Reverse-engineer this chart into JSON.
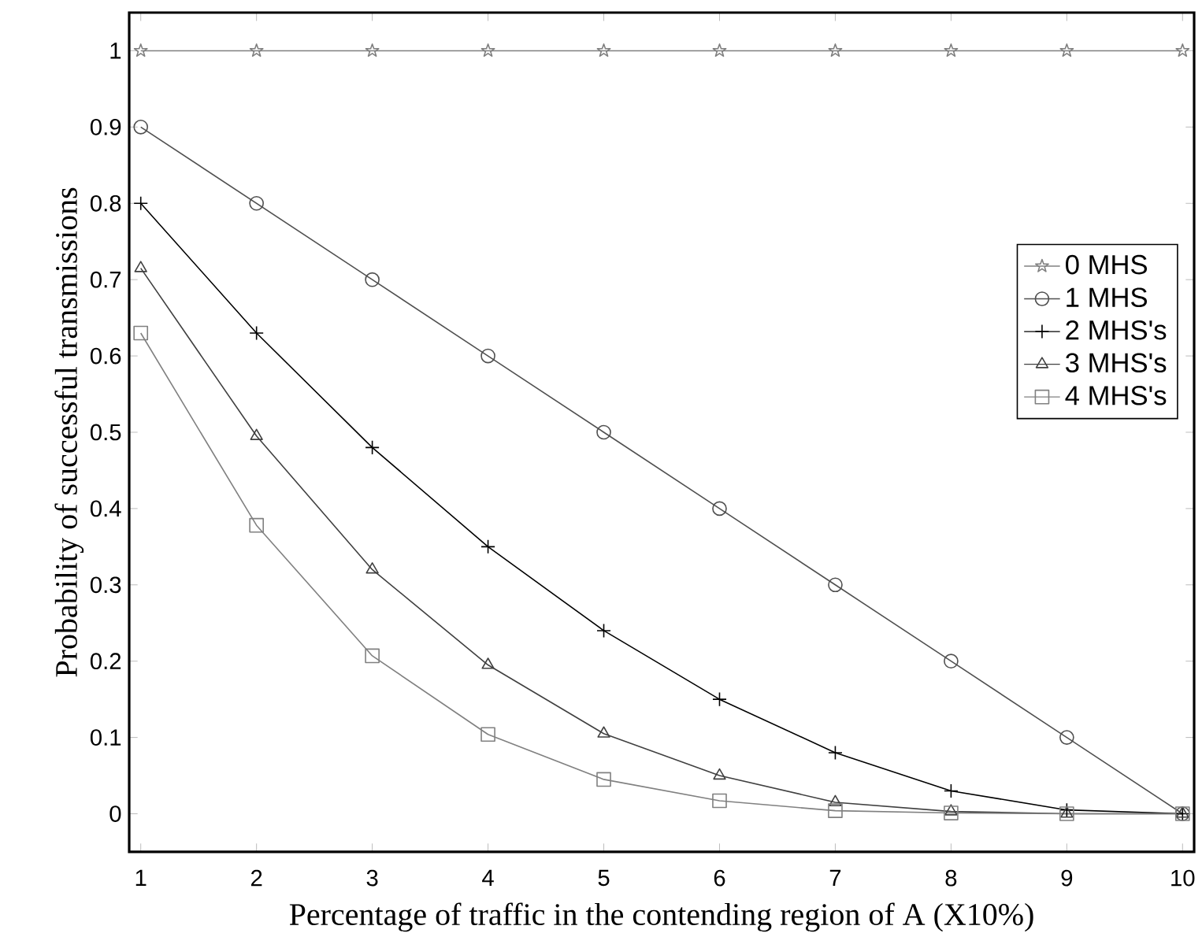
{
  "chart_data": {
    "type": "line",
    "xlabel": "Percentage of traffic in the contending region of A (X10%)",
    "ylabel": "Probability of successful transmissions",
    "x": [
      1,
      2,
      3,
      4,
      5,
      6,
      7,
      8,
      9,
      10
    ],
    "xlim": [
      0.9,
      10.1
    ],
    "ylim": [
      -0.05,
      1.05
    ],
    "xticks": [
      1,
      2,
      3,
      4,
      5,
      6,
      7,
      8,
      9,
      10
    ],
    "yticks": [
      0,
      0.1,
      0.2,
      0.3,
      0.4,
      0.5,
      0.6,
      0.7,
      0.8,
      0.9,
      1
    ],
    "grid": false,
    "legend": "right",
    "line_style": "solid",
    "series": [
      {
        "name": "0 MHS",
        "color": "#808080",
        "marker": "star",
        "values": [
          1,
          1,
          1,
          1,
          1,
          1,
          1,
          1,
          1,
          1
        ]
      },
      {
        "name": "1 MHS",
        "color": "#505050",
        "marker": "circle",
        "values": [
          0.9,
          0.8,
          0.7,
          0.6,
          0.5,
          0.4,
          0.3,
          0.2,
          0.1,
          0
        ]
      },
      {
        "name": "2 MHS's",
        "color": "#000000",
        "marker": "cross",
        "values": [
          0.8,
          0.63,
          0.48,
          0.35,
          0.24,
          0.15,
          0.08,
          0.03,
          0.005,
          0
        ]
      },
      {
        "name": "3 MHS's",
        "color": "#404040",
        "marker": "triangle",
        "values": [
          0.715,
          0.495,
          0.32,
          0.195,
          0.105,
          0.05,
          0.015,
          0.003,
          0,
          0
        ]
      },
      {
        "name": "4 MHS's",
        "color": "#808080",
        "marker": "square",
        "values": [
          0.63,
          0.378,
          0.207,
          0.104,
          0.045,
          0.017,
          0.004,
          0.001,
          0,
          0
        ]
      }
    ]
  }
}
